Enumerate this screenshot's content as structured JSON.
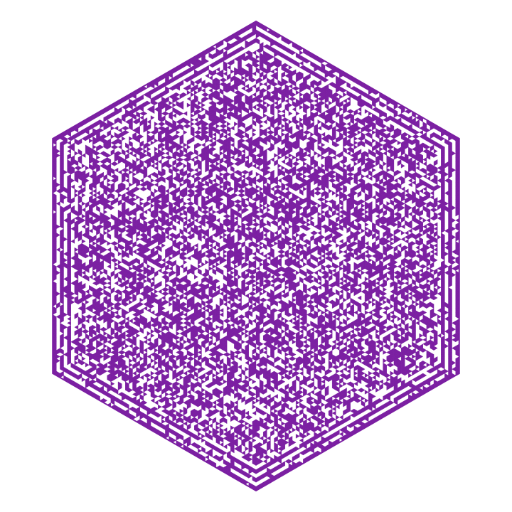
{
  "maze": {
    "shape": "hexagon",
    "cell_shape": "triangle",
    "style": "filled-cells",
    "fill_color": "#7b1fa2",
    "background_color": "#ffffff",
    "grid_size": 56,
    "border_bands": 3,
    "fill_density": 0.56,
    "seed": 7
  }
}
